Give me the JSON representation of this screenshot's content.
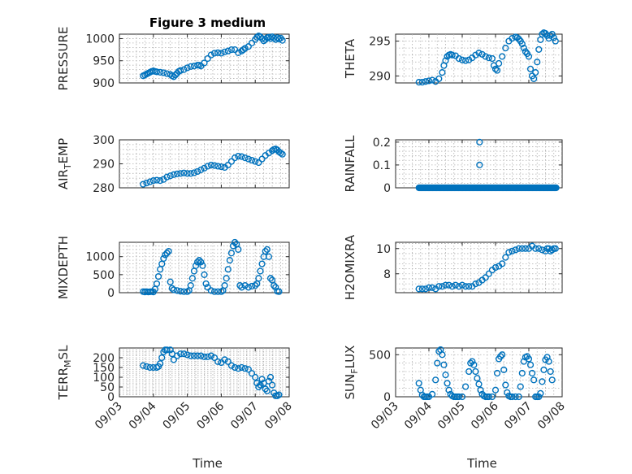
{
  "chart_data": [
    {
      "type": "scatter",
      "title": "Figure 3 medium",
      "ylabel": "PRESSURE",
      "xlabel": "",
      "xlim": [
        "2013-09-03",
        "2013-09-08"
      ],
      "ylim": [
        900,
        1010
      ],
      "yticks": [
        900,
        950,
        1000
      ],
      "xticks": [
        "09/03",
        "09/04",
        "09/05",
        "09/06",
        "09/07",
        "09/08"
      ],
      "show_xticklabels": false,
      "grid": true,
      "series": [
        {
          "x": [
            0.7,
            0.75,
            0.8,
            0.85,
            0.9,
            0.95,
            1.0,
            1.05,
            1.1,
            1.2,
            1.3,
            1.4,
            1.5,
            1.55,
            1.6,
            1.65,
            1.7,
            1.75,
            1.8,
            1.9,
            2.0,
            2.1,
            2.2,
            2.3,
            2.35,
            2.4,
            2.5,
            2.6,
            2.7,
            2.8,
            2.9,
            3.0,
            3.1,
            3.2,
            3.3,
            3.4,
            3.5,
            3.6,
            3.65,
            3.7,
            3.8,
            3.9,
            4.0,
            4.05,
            4.1,
            4.15,
            4.2,
            4.25,
            4.3,
            4.35,
            4.4,
            4.45,
            4.5,
            4.55,
            4.6,
            4.65,
            4.7,
            4.75,
            4.8
          ],
          "y": [
            916,
            918,
            920,
            922,
            924,
            926,
            927,
            926,
            925,
            924,
            923,
            921,
            919,
            916,
            914,
            918,
            922,
            926,
            928,
            930,
            934,
            937,
            938,
            940,
            940,
            938,
            945,
            955,
            963,
            967,
            968,
            967,
            970,
            972,
            975,
            975,
            968,
            972,
            975,
            978,
            982,
            990,
            998,
            1003,
            1006,
            1004,
            1000,
            995,
            998,
            1002,
            1003,
            1000,
            1004,
            1001,
            998,
            1002,
            999,
            1001,
            996
          ]
        }
      ]
    },
    {
      "type": "scatter",
      "title": "",
      "ylabel": "THETA",
      "xlabel": "",
      "xlim": [
        "2013-09-03",
        "2013-09-08"
      ],
      "ylim": [
        289,
        296
      ],
      "yticks": [
        290,
        295
      ],
      "xticks": [
        "09/03",
        "09/04",
        "09/05",
        "09/06",
        "09/07",
        "09/08"
      ],
      "show_xticklabels": false,
      "grid": true,
      "series": [
        {
          "x": [
            0.7,
            0.8,
            0.9,
            1.0,
            1.1,
            1.2,
            1.3,
            1.4,
            1.45,
            1.5,
            1.55,
            1.6,
            1.65,
            1.7,
            1.8,
            1.9,
            2.0,
            2.1,
            2.2,
            2.3,
            2.4,
            2.5,
            2.6,
            2.7,
            2.8,
            2.9,
            2.95,
            3.0,
            3.05,
            3.1,
            3.2,
            3.3,
            3.4,
            3.5,
            3.6,
            3.65,
            3.7,
            3.75,
            3.8,
            3.85,
            3.9,
            3.95,
            4.0,
            4.05,
            4.1,
            4.15,
            4.2,
            4.25,
            4.3,
            4.35,
            4.4,
            4.45,
            4.5,
            4.55,
            4.6,
            4.65,
            4.7,
            4.75,
            4.8
          ],
          "y": [
            289.1,
            289.1,
            289.2,
            289.3,
            289.4,
            289.2,
            289.6,
            290.5,
            291.5,
            292.2,
            292.8,
            293.0,
            293.1,
            293.0,
            292.9,
            292.5,
            292.3,
            292.2,
            292.3,
            292.6,
            293.0,
            293.3,
            293.1,
            292.8,
            292.6,
            292.5,
            291.5,
            291.0,
            290.8,
            291.8,
            292.8,
            294.0,
            295.0,
            295.4,
            295.6,
            295.5,
            295.3,
            295.0,
            294.6,
            294.0,
            293.5,
            293.2,
            292.8,
            291.0,
            290.0,
            289.6,
            290.5,
            292.0,
            293.8,
            295.2,
            296.0,
            296.2,
            296.1,
            295.8,
            295.4,
            295.8,
            296.0,
            295.5,
            295.0
          ]
        }
      ]
    },
    {
      "type": "scatter",
      "title": "",
      "ylabel": "AIR_TEMP",
      "xlabel": "",
      "xlim": [
        "2013-09-03",
        "2013-09-08"
      ],
      "ylim": [
        280,
        300
      ],
      "yticks": [
        280,
        290,
        300
      ],
      "xticks": [
        "09/03",
        "09/04",
        "09/05",
        "09/06",
        "09/07",
        "09/08"
      ],
      "show_xticklabels": false,
      "grid": true,
      "series": [
        {
          "x": [
            0.7,
            0.8,
            0.9,
            1.0,
            1.1,
            1.2,
            1.3,
            1.4,
            1.5,
            1.6,
            1.7,
            1.8,
            1.9,
            2.0,
            2.1,
            2.2,
            2.3,
            2.4,
            2.5,
            2.6,
            2.7,
            2.8,
            2.9,
            3.0,
            3.1,
            3.2,
            3.3,
            3.4,
            3.5,
            3.6,
            3.7,
            3.8,
            3.9,
            4.0,
            4.1,
            4.2,
            4.3,
            4.4,
            4.5,
            4.55,
            4.6,
            4.65,
            4.7,
            4.75,
            4.8
          ],
          "y": [
            281.5,
            282,
            282.5,
            283,
            283.2,
            283.0,
            283.5,
            284.5,
            285.0,
            285.5,
            285.8,
            286.0,
            286.2,
            286.0,
            286.0,
            286.3,
            286.8,
            287.5,
            288.2,
            289.0,
            289.5,
            289.3,
            289.0,
            288.8,
            288.5,
            289.5,
            291.0,
            292.5,
            293.2,
            293.0,
            292.5,
            292.0,
            291.5,
            291.0,
            290.5,
            292.0,
            293.5,
            294.5,
            295.5,
            296.0,
            296.2,
            295.8,
            295.0,
            294.5,
            294.0
          ]
        }
      ]
    },
    {
      "type": "scatter",
      "title": "",
      "ylabel": "RAINFALL",
      "xlabel": "",
      "xlim": [
        "2013-09-03",
        "2013-09-08"
      ],
      "ylim": [
        0,
        0.21
      ],
      "yticks": [
        0,
        0.1,
        0.2
      ],
      "xticks": [
        "09/03",
        "09/04",
        "09/05",
        "09/06",
        "09/07",
        "09/08"
      ],
      "show_xticklabels": false,
      "grid": true,
      "series": [
        {
          "x": [
            2.52,
            2.52
          ],
          "y": [
            0.2,
            0.1
          ]
        }
      ]
    },
    {
      "type": "scatter",
      "title": "",
      "ylabel": "MIXDEPTH",
      "xlabel": "",
      "xlim": [
        "2013-09-03",
        "2013-09-08"
      ],
      "ylim": [
        0,
        1400
      ],
      "yticks": [
        0,
        500,
        1000
      ],
      "xticks": [
        "09/03",
        "09/04",
        "09/05",
        "09/06",
        "09/07",
        "09/08"
      ],
      "show_xticklabels": false,
      "grid": true,
      "series": [
        {
          "x": [
            0.7,
            0.75,
            0.8,
            0.85,
            0.9,
            0.95,
            1.0,
            1.05,
            1.1,
            1.15,
            1.2,
            1.25,
            1.3,
            1.35,
            1.4,
            1.45,
            1.5,
            1.55,
            1.6,
            1.7,
            1.8,
            1.9,
            2.0,
            2.05,
            2.1,
            2.15,
            2.2,
            2.25,
            2.3,
            2.35,
            2.4,
            2.45,
            2.5,
            2.55,
            2.6,
            2.7,
            2.8,
            2.9,
            3.0,
            3.05,
            3.1,
            3.15,
            3.2,
            3.25,
            3.3,
            3.35,
            3.4,
            3.45,
            3.5,
            3.55,
            3.6,
            3.7,
            3.8,
            3.9,
            4.0,
            4.05,
            4.1,
            4.15,
            4.2,
            4.25,
            4.3,
            4.35,
            4.4,
            4.45,
            4.5,
            4.55,
            4.6,
            4.65,
            4.7
          ],
          "y": [
            30,
            20,
            30,
            20,
            25,
            30,
            20,
            100,
            250,
            450,
            650,
            800,
            950,
            1050,
            1100,
            1150,
            300,
            120,
            80,
            60,
            40,
            30,
            30,
            60,
            200,
            400,
            600,
            750,
            850,
            900,
            850,
            750,
            500,
            250,
            150,
            60,
            30,
            30,
            30,
            60,
            200,
            400,
            650,
            900,
            1100,
            1300,
            1400,
            1350,
            1200,
            200,
            150,
            200,
            150,
            180,
            200,
            250,
            400,
            600,
            800,
            1000,
            1150,
            1200,
            1000,
            400,
            350,
            200,
            150,
            40,
            30
          ]
        }
      ]
    },
    {
      "type": "scatter",
      "title": "",
      "ylabel": "H2OMIXRA",
      "xlabel": "",
      "xlim": [
        "2013-09-03",
        "2013-09-08"
      ],
      "ylim": [
        6.5,
        10.5
      ],
      "yticks": [
        8,
        10
      ],
      "xticks": [
        "09/03",
        "09/04",
        "09/05",
        "09/06",
        "09/07",
        "09/08"
      ],
      "show_xticklabels": false,
      "grid": true,
      "series": [
        {
          "x": [
            0.7,
            0.8,
            0.9,
            1.0,
            1.1,
            1.2,
            1.3,
            1.4,
            1.5,
            1.6,
            1.7,
            1.8,
            1.9,
            2.0,
            2.1,
            2.2,
            2.3,
            2.4,
            2.5,
            2.6,
            2.7,
            2.8,
            2.9,
            3.0,
            3.1,
            3.2,
            3.3,
            3.4,
            3.5,
            3.6,
            3.7,
            3.8,
            3.9,
            4.0,
            4.1,
            4.2,
            4.3,
            4.4,
            4.5,
            4.55,
            4.6,
            4.65,
            4.7,
            4.75,
            4.8
          ],
          "y": [
            6.8,
            6.8,
            6.8,
            6.9,
            6.9,
            6.8,
            7.0,
            7.0,
            7.1,
            7.1,
            7.0,
            7.1,
            7.0,
            7.1,
            7.0,
            7.0,
            7.0,
            7.2,
            7.3,
            7.5,
            7.7,
            8.0,
            8.3,
            8.5,
            8.6,
            8.8,
            9.3,
            9.7,
            9.8,
            9.9,
            10.0,
            10.0,
            10.0,
            10.0,
            10.2,
            10.0,
            10.0,
            9.9,
            9.8,
            10.0,
            10.0,
            9.8,
            9.9,
            10.0,
            10.0
          ]
        }
      ]
    },
    {
      "type": "scatter",
      "title": "",
      "ylabel": "TERR_MSL",
      "xlabel": "Time",
      "xlim": [
        "2013-09-03",
        "2013-09-08"
      ],
      "ylim": [
        0,
        250
      ],
      "yticks": [
        0,
        50,
        100,
        150,
        200
      ],
      "xticks": [
        "09/03",
        "09/04",
        "09/05",
        "09/06",
        "09/07",
        "09/08"
      ],
      "show_xticklabels": true,
      "grid": true,
      "series": [
        {
          "x": [
            0.7,
            0.8,
            0.9,
            1.0,
            1.1,
            1.15,
            1.2,
            1.25,
            1.3,
            1.35,
            1.4,
            1.5,
            1.55,
            1.6,
            1.7,
            1.8,
            1.9,
            2.0,
            2.1,
            2.2,
            2.3,
            2.4,
            2.5,
            2.6,
            2.7,
            2.8,
            2.9,
            3.0,
            3.1,
            3.2,
            3.3,
            3.4,
            3.5,
            3.6,
            3.7,
            3.8,
            3.9,
            4.0,
            4.05,
            4.1,
            4.15,
            4.2,
            4.25,
            4.3,
            4.35,
            4.4,
            4.45,
            4.5,
            4.55,
            4.6,
            4.65,
            4.7
          ],
          "y": [
            160,
            155,
            150,
            150,
            150,
            155,
            170,
            200,
            230,
            240,
            240,
            240,
            220,
            190,
            210,
            220,
            220,
            215,
            210,
            210,
            210,
            210,
            205,
            205,
            210,
            200,
            180,
            175,
            190,
            180,
            160,
            150,
            145,
            150,
            145,
            140,
            120,
            100,
            70,
            50,
            60,
            90,
            70,
            40,
            30,
            80,
            100,
            60,
            20,
            5,
            5,
            10
          ]
        }
      ]
    },
    {
      "type": "scatter",
      "title": "",
      "ylabel": "SUN_FLUX",
      "xlabel": "Time",
      "xlim": [
        "2013-09-03",
        "2013-09-08"
      ],
      "ylim": [
        0,
        580
      ],
      "yticks": [
        0,
        500
      ],
      "xticks": [
        "09/03",
        "09/04",
        "09/05",
        "09/06",
        "09/07",
        "09/08"
      ],
      "show_xticklabels": true,
      "grid": true,
      "series": [
        {
          "x": [
            0.7,
            0.75,
            0.8,
            0.85,
            0.9,
            0.95,
            1.0,
            1.1,
            1.2,
            1.25,
            1.3,
            1.35,
            1.4,
            1.45,
            1.5,
            1.55,
            1.6,
            1.65,
            1.7,
            1.75,
            1.8,
            1.85,
            1.9,
            2.0,
            2.1,
            2.2,
            2.25,
            2.3,
            2.35,
            2.4,
            2.45,
            2.5,
            2.55,
            2.6,
            2.65,
            2.7,
            2.75,
            2.8,
            2.9,
            3.0,
            3.05,
            3.1,
            3.15,
            3.2,
            3.25,
            3.3,
            3.35,
            3.4,
            3.45,
            3.5,
            3.6,
            3.7,
            3.75,
            3.8,
            3.85,
            3.9,
            3.95,
            4.0,
            4.05,
            4.1,
            4.15,
            4.2,
            4.25,
            4.3,
            4.35,
            4.4,
            4.45,
            4.5,
            4.55,
            4.6,
            4.65,
            4.7
          ],
          "y": [
            160,
            80,
            20,
            0,
            0,
            0,
            0,
            30,
            200,
            400,
            540,
            560,
            500,
            380,
            260,
            160,
            80,
            30,
            10,
            0,
            0,
            0,
            0,
            0,
            120,
            300,
            400,
            420,
            380,
            300,
            220,
            150,
            80,
            30,
            10,
            0,
            0,
            0,
            0,
            80,
            280,
            450,
            480,
            500,
            320,
            140,
            50,
            10,
            0,
            0,
            0,
            0,
            120,
            280,
            420,
            470,
            480,
            450,
            380,
            280,
            200,
            0,
            0,
            0,
            40,
            180,
            320,
            440,
            470,
            420,
            300,
            200
          ]
        }
      ]
    }
  ]
}
